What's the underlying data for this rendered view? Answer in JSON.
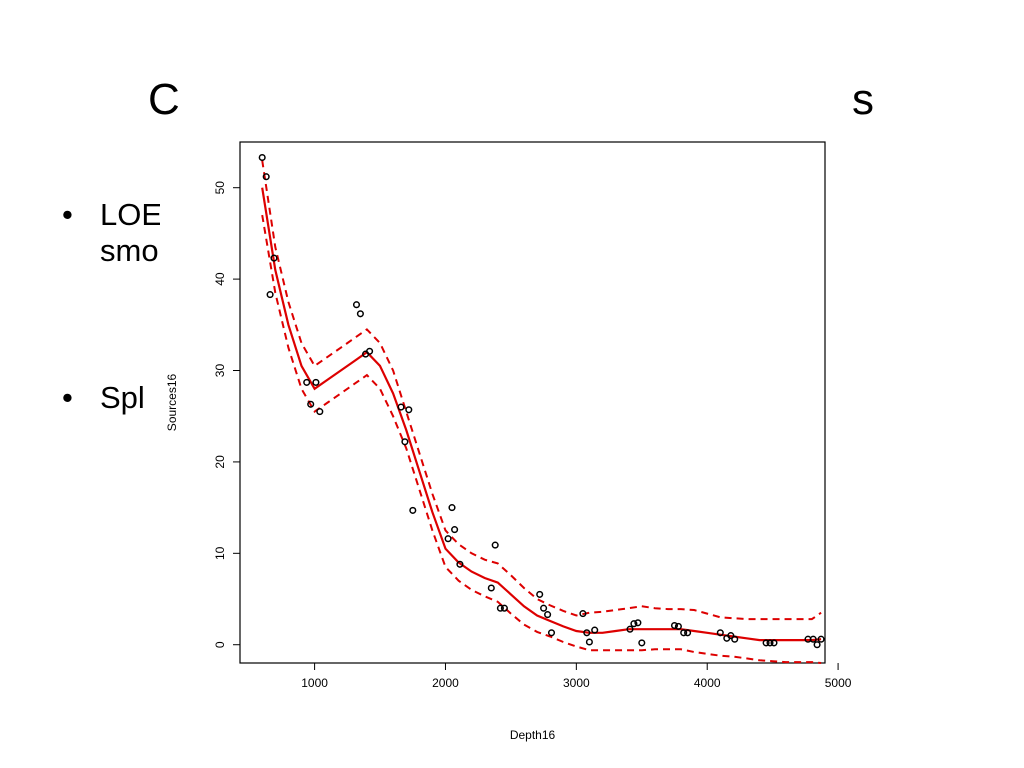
{
  "slide": {
    "title_left": "C",
    "title_right": "s",
    "bullets": [
      {
        "bullet": "•",
        "lines": [
          "LOE",
          "smo"
        ]
      },
      {
        "bullet": "•",
        "lines": [
          "Spl"
        ]
      }
    ]
  },
  "chart_data": {
    "type": "scatter",
    "title": "",
    "xlabel": "Depth16",
    "ylabel": "Sources16",
    "xlim": [
      430,
      4900
    ],
    "ylim": [
      -2,
      55
    ],
    "xticks": [
      1000,
      2000,
      3000,
      4000,
      5000
    ],
    "yticks": [
      0,
      10,
      20,
      30,
      40,
      50
    ],
    "grid": false,
    "legend": "none",
    "colors": {
      "points": "#000000",
      "fit": "#dd0000",
      "bands": "#dd0000"
    },
    "points": [
      [
        600,
        53.3
      ],
      [
        630,
        51.2
      ],
      [
        660,
        38.3
      ],
      [
        690,
        42.3
      ],
      [
        940,
        28.7
      ],
      [
        970,
        26.3
      ],
      [
        1010,
        28.7
      ],
      [
        1040,
        25.5
      ],
      [
        1320,
        37.2
      ],
      [
        1350,
        36.2
      ],
      [
        1390,
        31.8
      ],
      [
        1420,
        32.1
      ],
      [
        1660,
        26.0
      ],
      [
        1690,
        22.2
      ],
      [
        1720,
        25.7
      ],
      [
        1750,
        14.7
      ],
      [
        2020,
        11.6
      ],
      [
        2050,
        15.0
      ],
      [
        2070,
        12.6
      ],
      [
        2110,
        8.8
      ],
      [
        2350,
        6.2
      ],
      [
        2380,
        10.9
      ],
      [
        2420,
        4.0
      ],
      [
        2450,
        4.0
      ],
      [
        2720,
        5.5
      ],
      [
        2750,
        4.0
      ],
      [
        2780,
        3.3
      ],
      [
        2810,
        1.3
      ],
      [
        3050,
        3.4
      ],
      [
        3080,
        1.3
      ],
      [
        3100,
        0.3
      ],
      [
        3140,
        1.6
      ],
      [
        3410,
        1.7
      ],
      [
        3440,
        2.3
      ],
      [
        3470,
        2.4
      ],
      [
        3500,
        0.2
      ],
      [
        3750,
        2.1
      ],
      [
        3780,
        2.0
      ],
      [
        3820,
        1.3
      ],
      [
        3850,
        1.3
      ],
      [
        4100,
        1.3
      ],
      [
        4150,
        0.7
      ],
      [
        4180,
        1.0
      ],
      [
        4210,
        0.6
      ],
      [
        4450,
        0.2
      ],
      [
        4480,
        0.2
      ],
      [
        4510,
        0.2
      ],
      [
        4770,
        0.6
      ],
      [
        4810,
        0.6
      ],
      [
        4840,
        0.0
      ],
      [
        4870,
        0.6
      ]
    ],
    "fit": {
      "x": [
        600,
        700,
        800,
        900,
        1000,
        1100,
        1200,
        1300,
        1400,
        1500,
        1600,
        1700,
        1800,
        1900,
        2000,
        2100,
        2200,
        2300,
        2400,
        2500,
        2600,
        2700,
        2800,
        2900,
        3000,
        3100,
        3200,
        3300,
        3400,
        3500,
        3600,
        3700,
        3800,
        3900,
        4000,
        4100,
        4200,
        4300,
        4400,
        4500,
        4600,
        4700,
        4800,
        4870
      ],
      "y": [
        50.0,
        41.0,
        35.0,
        30.5,
        28.0,
        29.0,
        30.0,
        31.0,
        32.0,
        30.5,
        27.5,
        23.5,
        19.0,
        14.5,
        10.5,
        9.0,
        8.0,
        7.3,
        6.8,
        5.5,
        4.2,
        3.2,
        2.6,
        2.0,
        1.5,
        1.3,
        1.3,
        1.5,
        1.7,
        1.7,
        1.7,
        1.7,
        1.7,
        1.5,
        1.3,
        1.1,
        0.9,
        0.7,
        0.5,
        0.5,
        0.5,
        0.5,
        0.5,
        0.6
      ]
    },
    "upper_band": {
      "x": [
        600,
        700,
        800,
        900,
        1000,
        1100,
        1200,
        1300,
        1400,
        1500,
        1600,
        1700,
        1800,
        1900,
        2000,
        2100,
        2200,
        2300,
        2400,
        2500,
        2600,
        2700,
        2800,
        2900,
        3000,
        3100,
        3200,
        3300,
        3400,
        3500,
        3600,
        3700,
        3800,
        3900,
        4000,
        4100,
        4200,
        4300,
        4400,
        4500,
        4600,
        4700,
        4800,
        4870
      ],
      "y": [
        53.0,
        43.5,
        37.5,
        33.0,
        30.5,
        31.5,
        32.5,
        33.5,
        34.5,
        33.0,
        30.0,
        25.5,
        21.0,
        16.5,
        12.5,
        11.0,
        10.0,
        9.3,
        8.9,
        7.6,
        6.2,
        5.0,
        4.3,
        3.7,
        3.2,
        3.5,
        3.6,
        3.8,
        4.0,
        4.2,
        4.0,
        3.9,
        3.9,
        3.8,
        3.4,
        3.0,
        2.9,
        2.8,
        2.8,
        2.8,
        2.8,
        2.8,
        2.8,
        3.5
      ]
    },
    "lower_band": {
      "x": [
        600,
        700,
        800,
        900,
        1000,
        1100,
        1200,
        1300,
        1400,
        1500,
        1600,
        1700,
        1800,
        1900,
        2000,
        2100,
        2200,
        2300,
        2400,
        2500,
        2600,
        2700,
        2800,
        2900,
        3000,
        3100,
        3200,
        3300,
        3400,
        3500,
        3600,
        3700,
        3800,
        3900,
        4000,
        4100,
        4200,
        4300,
        4400,
        4500,
        4600,
        4700,
        4800,
        4870
      ],
      "y": [
        47.0,
        38.5,
        32.5,
        28.0,
        25.5,
        26.5,
        27.5,
        28.5,
        29.5,
        28.0,
        25.0,
        21.5,
        17.0,
        12.5,
        8.5,
        7.0,
        6.0,
        5.3,
        4.7,
        3.4,
        2.2,
        1.4,
        0.9,
        0.3,
        -0.2,
        -0.6,
        -0.6,
        -0.6,
        -0.6,
        -0.6,
        -0.5,
        -0.5,
        -0.5,
        -0.8,
        -1.0,
        -1.2,
        -1.3,
        -1.5,
        -1.7,
        -1.8,
        -1.9,
        -1.9,
        -1.9,
        -2.0
      ]
    }
  }
}
